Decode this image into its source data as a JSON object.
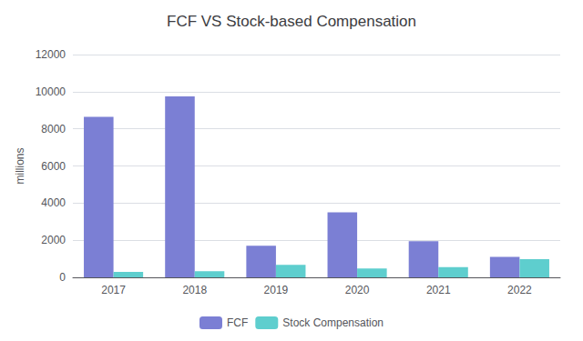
{
  "chart_data": {
    "type": "bar",
    "title": "FCF VS Stock-based Compensation",
    "categories": [
      "2017",
      "2018",
      "2019",
      "2020",
      "2021",
      "2022"
    ],
    "series": [
      {
        "name": "FCF",
        "color": "#7B7FD4",
        "values": [
          8650,
          9750,
          1700,
          3500,
          1950,
          1100
        ]
      },
      {
        "name": "Stock Compensation",
        "color": "#5ECECE",
        "values": [
          300,
          330,
          670,
          480,
          550,
          980
        ]
      }
    ],
    "ylabel": "millions",
    "ylim": [
      0,
      12000
    ],
    "yticks": [
      0,
      2000,
      4000,
      6000,
      8000,
      10000,
      12000
    ],
    "grid": true,
    "legend": "bottom"
  }
}
